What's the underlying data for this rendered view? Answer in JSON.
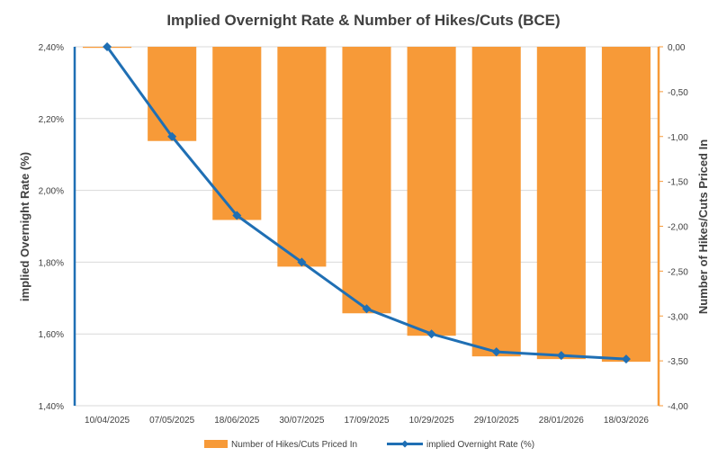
{
  "chart_data": {
    "type": "bar+line",
    "title": "Implied Overnight Rate & Number of Hikes/Cuts (BCE)",
    "categories": [
      "10/04/2025",
      "07/05/2025",
      "18/06/2025",
      "30/07/2025",
      "17/09/2025",
      "10/29/2025",
      "29/10/2025",
      "28/01/2026",
      "18/03/2026"
    ],
    "y_left": {
      "label": "implied Overnight Rate (%)",
      "range": [
        1.4,
        2.4
      ],
      "ticks": [
        "1,40%",
        "1,60%",
        "1,80%",
        "2,00%",
        "2,20%",
        "2,40%"
      ]
    },
    "y_right": {
      "label": "Number of Hikes/Cuts Priced In",
      "range": [
        -4.0,
        0.0
      ],
      "ticks": [
        "-4,00",
        "-3,50",
        "-3,00",
        "-2,50",
        "-2,00",
        "-1,50",
        "-1,00",
        "-0,50",
        "0,00"
      ]
    },
    "series": [
      {
        "name": "Number of Hikes/Cuts Priced In",
        "type": "bar",
        "axis": "right",
        "color": "#F79A38",
        "values": [
          -0.01,
          -1.05,
          -1.93,
          -2.45,
          -2.97,
          -3.22,
          -3.45,
          -3.48,
          -3.51
        ]
      },
      {
        "name": "implied Overnight Rate (%)",
        "type": "line",
        "axis": "left",
        "color": "#1F6FB4",
        "values": [
          2.4,
          2.15,
          1.93,
          1.8,
          1.67,
          1.6,
          1.55,
          1.54,
          1.53
        ]
      }
    ],
    "grid": true,
    "legend_position": "bottom"
  }
}
